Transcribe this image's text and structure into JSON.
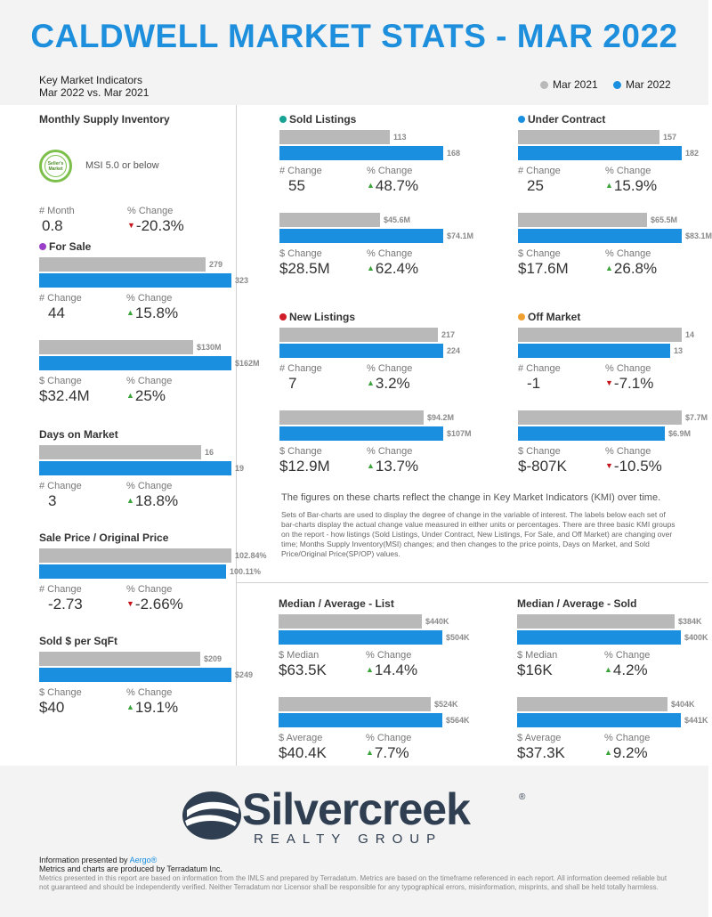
{
  "header": {
    "title": "CALDWELL MARKET STATS - MAR 2022",
    "subtitle_line1": "Key Market Indicators",
    "subtitle_line2": "Mar 2022 vs. Mar 2021",
    "legend_prev": "Mar 2021",
    "legend_curr": "Mar 2022"
  },
  "colors": {
    "prev": "#b9b9b9",
    "curr": "#1a8fe0",
    "title": "#1e8fdc",
    "up": "#3aa33a",
    "down": "#c4161c"
  },
  "msi": {
    "title": "Monthly Supply Inventory",
    "badge_line1": "Seller's",
    "badge_line2": "Market",
    "note": "MSI 5.0 or below",
    "label_a": "# Month",
    "value_a": "0.8",
    "label_b": "% Change",
    "value_b": "-20.3%",
    "direction": "down"
  },
  "chart_data": [
    {
      "type": "bar",
      "title": "For Sale",
      "dot_color": "#9b3fc9",
      "categories": [
        "Mar 2021",
        "Mar 2022"
      ],
      "values": [
        279,
        323
      ],
      "labels": [
        "279",
        "323"
      ],
      "label_a": "# Change",
      "value_a": "44",
      "label_b": "% Change",
      "value_b": "15.8%",
      "direction": "up"
    },
    {
      "type": "bar",
      "title": "",
      "categories": [
        "Mar 2021",
        "Mar 2022"
      ],
      "values": [
        130,
        162
      ],
      "labels": [
        "$130M",
        "$162M"
      ],
      "label_a": "$ Change",
      "value_a": "$32.4M",
      "label_b": "% Change",
      "value_b": "25%",
      "direction": "up"
    },
    {
      "type": "bar",
      "title": "Days on Market",
      "categories": [
        "Mar 2021",
        "Mar 2022"
      ],
      "values": [
        16,
        19
      ],
      "labels": [
        "16",
        "19"
      ],
      "label_a": "# Change",
      "value_a": "3",
      "label_b": "% Change",
      "value_b": "18.8%",
      "direction": "up"
    },
    {
      "type": "bar",
      "title": "Sale Price / Original Price",
      "categories": [
        "Mar 2021",
        "Mar 2022"
      ],
      "values": [
        102.84,
        100.11
      ],
      "labels": [
        "102.84%",
        "100.11%"
      ],
      "label_a": "# Change",
      "value_a": "-2.73",
      "label_b": "% Change",
      "value_b": "-2.66%",
      "direction": "down"
    },
    {
      "type": "bar",
      "title": "Sold $ per SqFt",
      "categories": [
        "Mar 2021",
        "Mar 2022"
      ],
      "values": [
        209,
        249
      ],
      "labels": [
        "$209",
        "$249"
      ],
      "label_a": "$ Change",
      "value_a": "$40",
      "label_b": "% Change",
      "value_b": "19.1%",
      "direction": "up"
    },
    {
      "type": "bar",
      "title": "Sold Listings",
      "dot_color": "#16a394",
      "categories": [
        "Mar 2021",
        "Mar 2022"
      ],
      "values": [
        113,
        168
      ],
      "labels": [
        "113",
        "168"
      ],
      "label_a": "# Change",
      "value_a": "55",
      "label_b": "% Change",
      "value_b": "48.7%",
      "direction": "up"
    },
    {
      "type": "bar",
      "title": "",
      "categories": [
        "Mar 2021",
        "Mar 2022"
      ],
      "values": [
        45.6,
        74.1
      ],
      "labels": [
        "$45.6M",
        "$74.1M"
      ],
      "label_a": "$ Change",
      "value_a": "$28.5M",
      "label_b": "% Change",
      "value_b": "62.4%",
      "direction": "up"
    },
    {
      "type": "bar",
      "title": "Under Contract",
      "dot_color": "#1a8fe0",
      "categories": [
        "Mar 2021",
        "Mar 2022"
      ],
      "values": [
        157,
        182
      ],
      "labels": [
        "157",
        "182"
      ],
      "label_a": "# Change",
      "value_a": "25",
      "label_b": "% Change",
      "value_b": "15.9%",
      "direction": "up"
    },
    {
      "type": "bar",
      "title": "",
      "categories": [
        "Mar 2021",
        "Mar 2022"
      ],
      "values": [
        65.5,
        83.1
      ],
      "labels": [
        "$65.5M",
        "$83.1M"
      ],
      "label_a": "$ Change",
      "value_a": "$17.6M",
      "label_b": "% Change",
      "value_b": "26.8%",
      "direction": "up"
    },
    {
      "type": "bar",
      "title": "New Listings",
      "dot_color": "#d11c2a",
      "categories": [
        "Mar 2021",
        "Mar 2022"
      ],
      "values": [
        217,
        224
      ],
      "labels": [
        "217",
        "224"
      ],
      "label_a": "# Change",
      "value_a": "7",
      "label_b": "% Change",
      "value_b": "3.2%",
      "direction": "up"
    },
    {
      "type": "bar",
      "title": "",
      "categories": [
        "Mar 2021",
        "Mar 2022"
      ],
      "values": [
        94.2,
        107
      ],
      "labels": [
        "$94.2M",
        "$107M"
      ],
      "label_a": "$ Change",
      "value_a": "$12.9M",
      "label_b": "% Change",
      "value_b": "13.7%",
      "direction": "up"
    },
    {
      "type": "bar",
      "title": "Off Market",
      "dot_color": "#f0a030",
      "categories": [
        "Mar 2021",
        "Mar 2022"
      ],
      "values": [
        14,
        13
      ],
      "labels": [
        "14",
        "13"
      ],
      "label_a": "# Change",
      "value_a": "-1",
      "label_b": "% Change",
      "value_b": "-7.1%",
      "direction": "down"
    },
    {
      "type": "bar",
      "title": "",
      "categories": [
        "Mar 2021",
        "Mar 2022"
      ],
      "values": [
        7.7,
        6.9
      ],
      "labels": [
        "$7.7M",
        "$6.9M"
      ],
      "label_a": "$ Change",
      "value_a": "$-807K",
      "label_b": "% Change",
      "value_b": "-10.5%",
      "direction": "down"
    },
    {
      "type": "bar",
      "title": "Median / Average - List",
      "categories": [
        "Mar 2021",
        "Mar 2022"
      ],
      "values": [
        440,
        504
      ],
      "labels": [
        "$440K",
        "$504K"
      ],
      "label_a": "$ Median",
      "value_a": "$63.5K",
      "label_b": "% Change",
      "value_b": "14.4%",
      "direction": "up"
    },
    {
      "type": "bar",
      "title": "",
      "categories": [
        "Mar 2021",
        "Mar 2022"
      ],
      "values": [
        524,
        564
      ],
      "labels": [
        "$524K",
        "$564K"
      ],
      "label_a": "$ Average",
      "value_a": "$40.4K",
      "label_b": "% Change",
      "value_b": "7.7%",
      "direction": "up"
    },
    {
      "type": "bar",
      "title": "Median / Average - Sold",
      "categories": [
        "Mar 2021",
        "Mar 2022"
      ],
      "values": [
        384,
        400
      ],
      "labels": [
        "$384K",
        "$400K"
      ],
      "label_a": "$ Median",
      "value_a": "$16K",
      "label_b": "% Change",
      "value_b": "4.2%",
      "direction": "up"
    },
    {
      "type": "bar",
      "title": "",
      "categories": [
        "Mar 2021",
        "Mar 2022"
      ],
      "values": [
        404,
        441
      ],
      "labels": [
        "$404K",
        "$441K"
      ],
      "label_a": "$ Average",
      "value_a": "$37.3K",
      "label_b": "% Change",
      "value_b": "9.2%",
      "direction": "up"
    }
  ],
  "notes": {
    "main": "The figures on these charts reflect the change in Key Market Indicators (KMI) over time.",
    "detail": "Sets of Bar-charts are used to display the degree of change in the variable of interest. The labels below each set of bar-charts display the actual change value measured in either units or percentages. There are three basic KMI groups on the report - how listings (Sold Listings, Under Contract, New Listings, For Sale, and Off Market) are changing over time; Months Supply Inventory(MSI) changes; and then changes to the price points, Days on Market, and Sold Price/Original Price(SP/OP) values."
  },
  "footer": {
    "brand": "Silvercreek",
    "brand_sub": "REALTY GROUP",
    "reg": "®",
    "presented_prefix": "Information presented by ",
    "presented_link": "Aergo®",
    "produced": "Metrics and charts are produced by Terradatum Inc.",
    "disclaimer": "Metrics presented in this report are based on information from the IMLS and prepared by Terradatum. Metrics are based on the timeframe referenced in each report. All information deemed reliable but not guaranteed and should be independently verified. Neither Terradatum nor Licensor shall be responsible for any typographical errors, misinformation, misprints, and shall be held totally harmless."
  }
}
